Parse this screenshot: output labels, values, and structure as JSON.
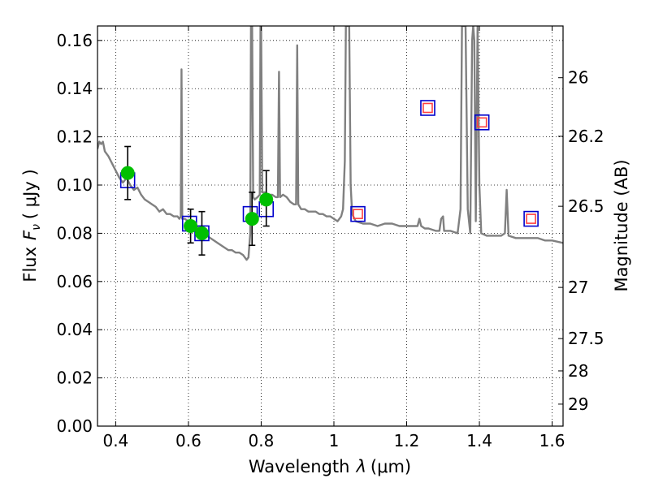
{
  "chart_data": {
    "type": "scatter",
    "xlabel_text": "Wavelength",
    "xlabel_symbol": "λ",
    "xlabel_unit": "(μm)",
    "ylabel_text": "Flux",
    "ylabel_symbol": "F",
    "ylabel_subscript": "ν",
    "ylabel_unit": "( μJy )",
    "y2label": "Magnitude (AB)",
    "xlim": [
      0.35,
      1.63
    ],
    "ylim": [
      0.0,
      0.166
    ],
    "grid": true,
    "xticks": [
      {
        "value": 0.4,
        "label": "0.4"
      },
      {
        "value": 0.6,
        "label": "0.6"
      },
      {
        "value": 0.8,
        "label": "0.8"
      },
      {
        "value": 1.0,
        "label": "1"
      },
      {
        "value": 1.2,
        "label": "1.2"
      },
      {
        "value": 1.4,
        "label": "1.4"
      },
      {
        "value": 1.6,
        "label": "1.6"
      }
    ],
    "yticks": [
      {
        "value": 0.0,
        "label": "0.00"
      },
      {
        "value": 0.02,
        "label": "0.02"
      },
      {
        "value": 0.04,
        "label": "0.04"
      },
      {
        "value": 0.06,
        "label": "0.06"
      },
      {
        "value": 0.08,
        "label": "0.08"
      },
      {
        "value": 0.1,
        "label": "0.10"
      },
      {
        "value": 0.12,
        "label": "0.12"
      },
      {
        "value": 0.14,
        "label": "0.14"
      },
      {
        "value": 0.16,
        "label": "0.16"
      }
    ],
    "y2ticks": [
      {
        "mag": 26,
        "label": "26"
      },
      {
        "mag": 26.2,
        "label": "26.2"
      },
      {
        "mag": 26.5,
        "label": "26.5"
      },
      {
        "mag": 27,
        "label": "27"
      },
      {
        "mag": 27.5,
        "label": "27.5"
      },
      {
        "mag": 28,
        "label": "28"
      },
      {
        "mag": 29,
        "label": "29"
      }
    ],
    "series": [
      {
        "kind": "model-spectrum",
        "color": "#808080",
        "points": [
          [
            0.35,
            0.115
          ],
          [
            0.355,
            0.118
          ],
          [
            0.36,
            0.117
          ],
          [
            0.365,
            0.118
          ],
          [
            0.37,
            0.114
          ],
          [
            0.38,
            0.112
          ],
          [
            0.39,
            0.109
          ],
          [
            0.4,
            0.106
          ],
          [
            0.41,
            0.103
          ],
          [
            0.42,
            0.101
          ],
          [
            0.43,
            0.103
          ],
          [
            0.44,
            0.1
          ],
          [
            0.45,
            0.098
          ],
          [
            0.46,
            0.099
          ],
          [
            0.47,
            0.096
          ],
          [
            0.48,
            0.094
          ],
          [
            0.49,
            0.093
          ],
          [
            0.5,
            0.092
          ],
          [
            0.51,
            0.091
          ],
          [
            0.52,
            0.089
          ],
          [
            0.53,
            0.09
          ],
          [
            0.54,
            0.088
          ],
          [
            0.55,
            0.088
          ],
          [
            0.56,
            0.087
          ],
          [
            0.57,
            0.087
          ],
          [
            0.575,
            0.086
          ],
          [
            0.579,
            0.087
          ],
          [
            0.581,
            0.148
          ],
          [
            0.583,
            0.086
          ],
          [
            0.59,
            0.086
          ],
          [
            0.6,
            0.085
          ],
          [
            0.61,
            0.084
          ],
          [
            0.62,
            0.083
          ],
          [
            0.63,
            0.082
          ],
          [
            0.64,
            0.081
          ],
          [
            0.65,
            0.079
          ],
          [
            0.66,
            0.078
          ],
          [
            0.67,
            0.077
          ],
          [
            0.68,
            0.076
          ],
          [
            0.69,
            0.075
          ],
          [
            0.7,
            0.074
          ],
          [
            0.71,
            0.073
          ],
          [
            0.72,
            0.073
          ],
          [
            0.73,
            0.072
          ],
          [
            0.74,
            0.072
          ],
          [
            0.75,
            0.071
          ],
          [
            0.76,
            0.069
          ],
          [
            0.765,
            0.07
          ],
          [
            0.77,
            0.08
          ],
          [
            0.772,
            0.166
          ],
          [
            0.775,
            0.166
          ],
          [
            0.778,
            0.095
          ],
          [
            0.782,
            0.094
          ],
          [
            0.79,
            0.095
          ],
          [
            0.796,
            0.096
          ],
          [
            0.798,
            0.166
          ],
          [
            0.8,
            0.166
          ],
          [
            0.803,
            0.097
          ],
          [
            0.81,
            0.097
          ],
          [
            0.82,
            0.096
          ],
          [
            0.83,
            0.096
          ],
          [
            0.84,
            0.095
          ],
          [
            0.846,
            0.095
          ],
          [
            0.849,
            0.147
          ],
          [
            0.852,
            0.095
          ],
          [
            0.86,
            0.096
          ],
          [
            0.87,
            0.095
          ],
          [
            0.88,
            0.093
          ],
          [
            0.89,
            0.092
          ],
          [
            0.896,
            0.092
          ],
          [
            0.899,
            0.158
          ],
          [
            0.902,
            0.092
          ],
          [
            0.91,
            0.09
          ],
          [
            0.92,
            0.09
          ],
          [
            0.93,
            0.089
          ],
          [
            0.94,
            0.089
          ],
          [
            0.95,
            0.089
          ],
          [
            0.96,
            0.088
          ],
          [
            0.97,
            0.088
          ],
          [
            0.98,
            0.087
          ],
          [
            0.99,
            0.087
          ],
          [
            1.0,
            0.086
          ],
          [
            1.01,
            0.085
          ],
          [
            1.02,
            0.087
          ],
          [
            1.025,
            0.09
          ],
          [
            1.03,
            0.11
          ],
          [
            1.033,
            0.166
          ],
          [
            1.042,
            0.166
          ],
          [
            1.046,
            0.1
          ],
          [
            1.05,
            0.088
          ],
          [
            1.06,
            0.085
          ],
          [
            1.08,
            0.084
          ],
          [
            1.1,
            0.084
          ],
          [
            1.12,
            0.083
          ],
          [
            1.14,
            0.084
          ],
          [
            1.16,
            0.084
          ],
          [
            1.18,
            0.083
          ],
          [
            1.2,
            0.083
          ],
          [
            1.22,
            0.083
          ],
          [
            1.23,
            0.083
          ],
          [
            1.235,
            0.086
          ],
          [
            1.24,
            0.083
          ],
          [
            1.25,
            0.082
          ],
          [
            1.26,
            0.082
          ],
          [
            1.28,
            0.081
          ],
          [
            1.29,
            0.081
          ],
          [
            1.295,
            0.086
          ],
          [
            1.3,
            0.087
          ],
          [
            1.303,
            0.081
          ],
          [
            1.32,
            0.081
          ],
          [
            1.34,
            0.08
          ],
          [
            1.348,
            0.09
          ],
          [
            1.352,
            0.166
          ],
          [
            1.362,
            0.166
          ],
          [
            1.368,
            0.09
          ],
          [
            1.375,
            0.08
          ],
          [
            1.38,
            0.16
          ],
          [
            1.383,
            0.166
          ],
          [
            1.386,
            0.16
          ],
          [
            1.39,
            0.085
          ],
          [
            1.395,
            0.166
          ],
          [
            1.4,
            0.1
          ],
          [
            1.405,
            0.08
          ],
          [
            1.42,
            0.079
          ],
          [
            1.44,
            0.079
          ],
          [
            1.46,
            0.079
          ],
          [
            1.47,
            0.08
          ],
          [
            1.475,
            0.098
          ],
          [
            1.48,
            0.079
          ],
          [
            1.5,
            0.078
          ],
          [
            1.52,
            0.078
          ],
          [
            1.54,
            0.078
          ],
          [
            1.56,
            0.078
          ],
          [
            1.58,
            0.077
          ],
          [
            1.6,
            0.077
          ],
          [
            1.63,
            0.076
          ]
        ]
      },
      {
        "kind": "observed",
        "marker": "circle",
        "color": "#00c000",
        "errorbar_color": "#000000",
        "points": [
          {
            "x": 0.433,
            "y": 0.105,
            "yerr_low": 0.011,
            "yerr_high": 0.011
          },
          {
            "x": 0.606,
            "y": 0.083,
            "yerr_low": 0.007,
            "yerr_high": 0.007
          },
          {
            "x": 0.637,
            "y": 0.08,
            "yerr_low": 0.009,
            "yerr_high": 0.009
          },
          {
            "x": 0.775,
            "y": 0.086,
            "yerr_low": 0.011,
            "yerr_high": 0.011
          },
          {
            "x": 0.814,
            "y": 0.094,
            "yerr_low": 0.011,
            "yerr_high": 0.012
          }
        ]
      },
      {
        "kind": "model-photometry",
        "marker": "square",
        "color": "#0000cc",
        "points": [
          {
            "x": 0.433,
            "y": 0.102
          },
          {
            "x": 0.603,
            "y": 0.084
          },
          {
            "x": 0.637,
            "y": 0.08
          },
          {
            "x": 0.77,
            "y": 0.088
          },
          {
            "x": 0.814,
            "y": 0.09
          },
          {
            "x": 1.066,
            "y": 0.088
          },
          {
            "x": 1.258,
            "y": 0.132
          },
          {
            "x": 1.407,
            "y": 0.126
          },
          {
            "x": 1.542,
            "y": 0.086
          }
        ]
      },
      {
        "kind": "upper-limit",
        "marker": "square",
        "color": "#ff4040",
        "points": [
          {
            "x": 1.066,
            "y": 0.088
          },
          {
            "x": 1.258,
            "y": 0.132
          },
          {
            "x": 1.407,
            "y": 0.126
          },
          {
            "x": 1.542,
            "y": 0.086
          }
        ]
      }
    ]
  }
}
